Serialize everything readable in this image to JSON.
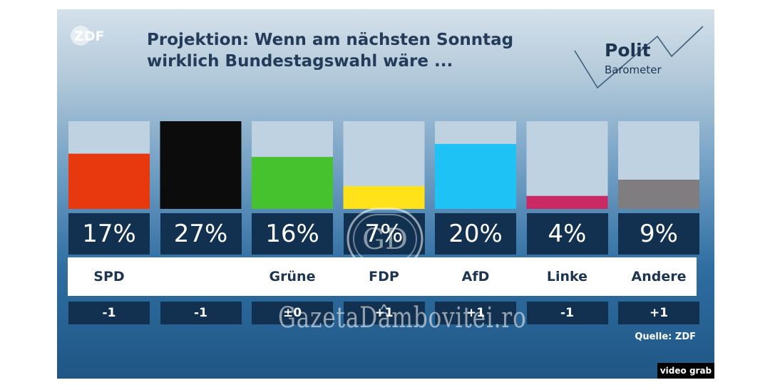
{
  "header": {
    "broadcaster_logo": "ZDF",
    "title_line1": "Projektion: Wenn am nächsten Sonntag",
    "title_line2": "wirklich Bundestagswahl wäre ...",
    "brand_line1": "Polit",
    "brand_line2": "Barometer"
  },
  "chart_data": {
    "type": "bar",
    "title": "Projektion: Wenn am nächsten Sonntag wirklich Bundestagswahl wäre ...",
    "xlabel": "",
    "ylabel": "",
    "ylim": [
      0,
      27
    ],
    "grid": false,
    "legend": "none",
    "categories": [
      "SPD",
      "",
      "Grüne",
      "FDP",
      "AfD",
      "Linke",
      "Andere"
    ],
    "values": [
      17,
      27,
      16,
      7,
      20,
      4,
      9
    ],
    "value_labels": [
      "17%",
      "27%",
      "16%",
      "7%",
      "20%",
      "4%",
      "9%"
    ],
    "changes": [
      "-1",
      "-1",
      "±0",
      "+1",
      "+1",
      "-1",
      "+1"
    ],
    "colors": [
      "#e8380d",
      "#0c0c0c",
      "#46c22e",
      "#ffe21a",
      "#1ec2f5",
      "#c92a63",
      "#807d80"
    ],
    "track_color": "#bfd2e2"
  },
  "footer": {
    "source": "Quelle: ZDF",
    "overlay_tag": "video grab",
    "watermark": "GazetaDâmbovitei.ro",
    "watermark_seal": "GD"
  }
}
